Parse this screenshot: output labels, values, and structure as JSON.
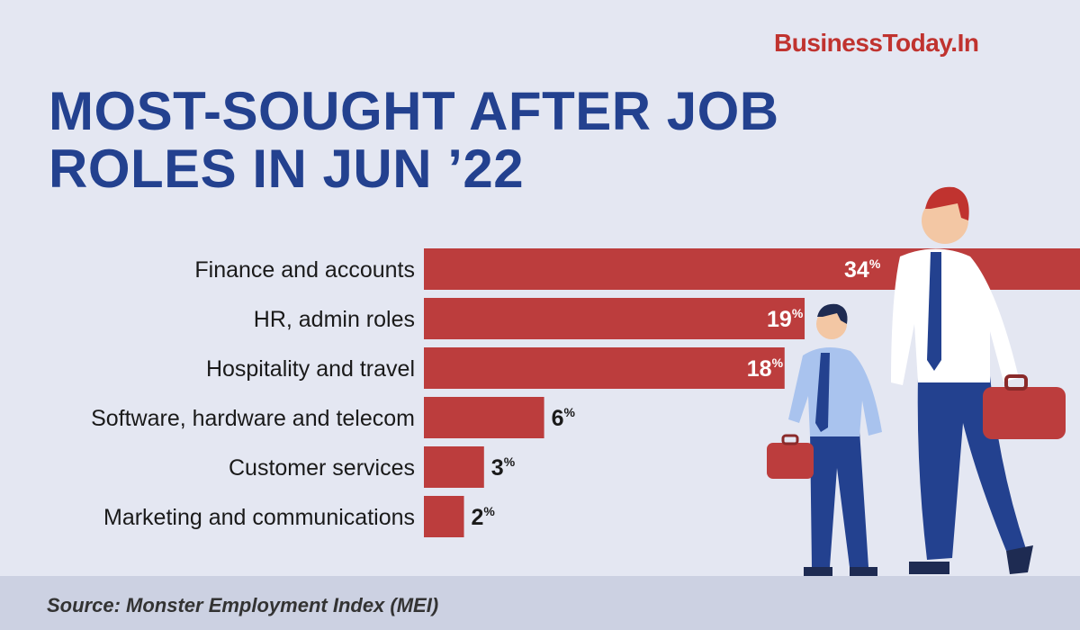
{
  "brand": "BusinessToday.In",
  "title_lines": [
    "MOST-SOUGHT AFTER JOB",
    "ROLES IN JUN ’22"
  ],
  "source": "Source: Monster Employment Index (MEI)",
  "colors": {
    "bar": "#bc3d3d",
    "title": "#23418f",
    "brand": "#c0332f",
    "background": "#e4e7f2"
  },
  "chart_data": {
    "type": "bar",
    "orientation": "horizontal",
    "categories": [
      "Finance and accounts",
      "HR, admin roles",
      "Hospitality and travel",
      "Software, hardware and telecom",
      "Customer services",
      "Marketing and communications"
    ],
    "values": [
      34,
      19,
      18,
      6,
      3,
      2
    ],
    "unit": "%",
    "data_labels": [
      "34",
      "19",
      "18",
      "6",
      "3",
      "2"
    ]
  }
}
